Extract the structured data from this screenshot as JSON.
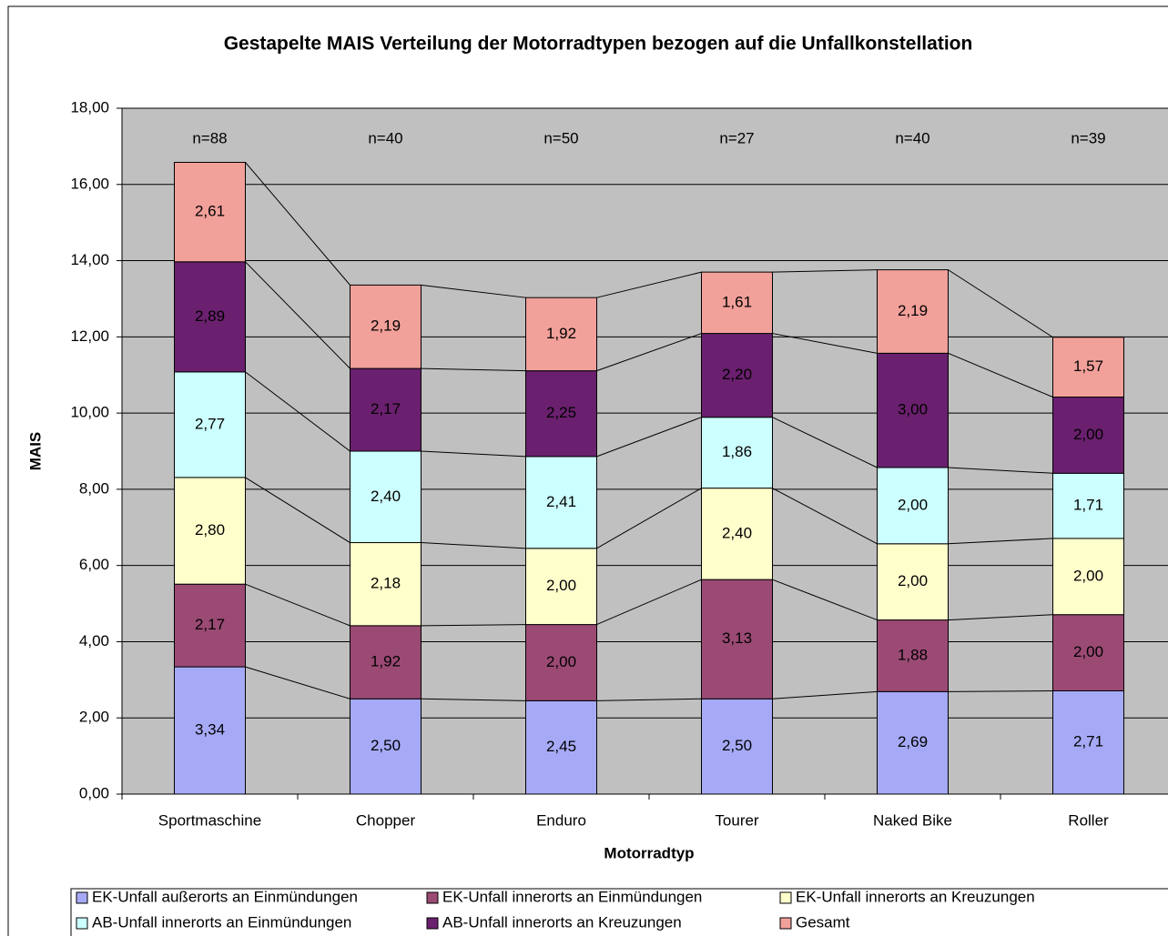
{
  "chart_data": {
    "type": "stacked_bar",
    "title": "Gestapelte MAIS Verteilung der Motorradtypen bezogen auf die Unfallkonstellation",
    "x_label": "Motorradtyp",
    "y_label": "MAIS",
    "categories": [
      "Sportmaschine",
      "Chopper",
      "Enduro",
      "Tourer",
      "Naked Bike",
      "Roller"
    ],
    "annotations": [
      "n=88",
      "n=40",
      "n=50",
      "n=27",
      "n=40",
      "n=39"
    ],
    "series": [
      {
        "name": "EK-Unfall außerorts an Einmündungen",
        "color": "#a6aaf6",
        "values": [
          3.34,
          2.5,
          2.45,
          2.5,
          2.69,
          2.71
        ],
        "value_labels": [
          "3,34",
          "2,50",
          "2,45",
          "2,50",
          "2,69",
          "2,71"
        ]
      },
      {
        "name": "EK-Unfall innerorts an Einmündungen",
        "color": "#9b4a74",
        "values": [
          2.17,
          1.92,
          2.0,
          3.13,
          1.88,
          2.0
        ],
        "value_labels": [
          "2,17",
          "1,92",
          "2,00",
          "3,13",
          "1,88",
          "2,00"
        ]
      },
      {
        "name": "EK-Unfall innerorts an Kreuzungen",
        "color": "#ffffcc",
        "values": [
          2.8,
          2.18,
          2.0,
          2.4,
          2.0,
          2.0
        ],
        "value_labels": [
          "2,80",
          "2,18",
          "2,00",
          "2,40",
          "2,00",
          "2,00"
        ]
      },
      {
        "name": "AB-Unfall innerorts an Einmündungen",
        "color": "#ccffff",
        "values": [
          2.77,
          2.4,
          2.41,
          1.86,
          2.0,
          1.71
        ],
        "value_labels": [
          "2,77",
          "2,40",
          "2,41",
          "1,86",
          "2,00",
          "1,71"
        ]
      },
      {
        "name": "AB-Unfall innerorts an Kreuzungen",
        "color": "#6a206e",
        "values": [
          2.89,
          2.17,
          2.25,
          2.2,
          3.0,
          2.0
        ],
        "value_labels": [
          "2,89",
          "2,17",
          "2,25",
          "2,20",
          "3,00",
          "2,00"
        ]
      },
      {
        "name": "Gesamt",
        "color": "#f2a09a",
        "values": [
          2.61,
          2.19,
          1.92,
          1.61,
          2.19,
          1.57
        ],
        "value_labels": [
          "2,61",
          "2,19",
          "1,92",
          "1,61",
          "2,19",
          "1,57"
        ]
      }
    ],
    "ylim": [
      0,
      18
    ],
    "yticks": [
      {
        "value": 0,
        "label": "0,00"
      },
      {
        "value": 2,
        "label": "2,00"
      },
      {
        "value": 4,
        "label": "4,00"
      },
      {
        "value": 6,
        "label": "6,00"
      },
      {
        "value": 8,
        "label": "8,00"
      },
      {
        "value": 10,
        "label": "10,00"
      },
      {
        "value": 12,
        "label": "12,00"
      },
      {
        "value": 14,
        "label": "14,00"
      },
      {
        "value": 16,
        "label": "16,00"
      },
      {
        "value": 18,
        "label": "18,00"
      }
    ],
    "grid": true,
    "plot_background": "#c0c0c0",
    "legend": "bottom"
  }
}
